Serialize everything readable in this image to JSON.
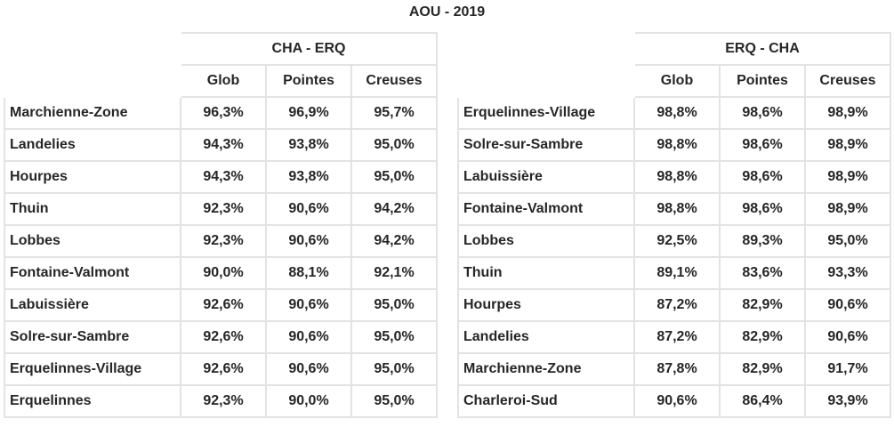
{
  "title": "AOU - 2019",
  "columns": [
    "Glob",
    "Pointes",
    "Creuses"
  ],
  "tables": [
    {
      "group": "CHA - ERQ",
      "rows": [
        {
          "name": "Marchienne-Zone",
          "glob": "96,3%",
          "pointes": "96,9%",
          "creuses": "95,7%"
        },
        {
          "name": "Landelies",
          "glob": "94,3%",
          "pointes": "93,8%",
          "creuses": "95,0%"
        },
        {
          "name": "Hourpes",
          "glob": "94,3%",
          "pointes": "93,8%",
          "creuses": "95,0%"
        },
        {
          "name": "Thuin",
          "glob": "92,3%",
          "pointes": "90,6%",
          "creuses": "94,2%"
        },
        {
          "name": "Lobbes",
          "glob": "92,3%",
          "pointes": "90,6%",
          "creuses": "94,2%"
        },
        {
          "name": "Fontaine-Valmont",
          "glob": "90,0%",
          "pointes": "88,1%",
          "creuses": "92,1%"
        },
        {
          "name": "Labuissière",
          "glob": "92,6%",
          "pointes": "90,6%",
          "creuses": "95,0%"
        },
        {
          "name": "Solre-sur-Sambre",
          "glob": "92,6%",
          "pointes": "90,6%",
          "creuses": "95,0%"
        },
        {
          "name": "Erquelinnes-Village",
          "glob": "92,6%",
          "pointes": "90,6%",
          "creuses": "95,0%"
        },
        {
          "name": "Erquelinnes",
          "glob": "92,3%",
          "pointes": "90,0%",
          "creuses": "95,0%"
        }
      ]
    },
    {
      "group": "ERQ - CHA",
      "rows": [
        {
          "name": "Erquelinnes-Village",
          "glob": "98,8%",
          "pointes": "98,6%",
          "creuses": "98,9%"
        },
        {
          "name": "Solre-sur-Sambre",
          "glob": "98,8%",
          "pointes": "98,6%",
          "creuses": "98,9%"
        },
        {
          "name": "Labuissière",
          "glob": "98,8%",
          "pointes": "98,6%",
          "creuses": "98,9%"
        },
        {
          "name": "Fontaine-Valmont",
          "glob": "98,8%",
          "pointes": "98,6%",
          "creuses": "98,9%"
        },
        {
          "name": "Lobbes",
          "glob": "92,5%",
          "pointes": "89,3%",
          "creuses": "95,0%"
        },
        {
          "name": "Thuin",
          "glob": "89,1%",
          "pointes": "83,6%",
          "creuses": "93,3%"
        },
        {
          "name": "Hourpes",
          "glob": "87,2%",
          "pointes": "82,9%",
          "creuses": "90,6%"
        },
        {
          "name": "Landelies",
          "glob": "87,2%",
          "pointes": "82,9%",
          "creuses": "90,6%"
        },
        {
          "name": "Marchienne-Zone",
          "glob": "87,8%",
          "pointes": "82,9%",
          "creuses": "91,7%"
        },
        {
          "name": "Charleroi-Sud",
          "glob": "90,6%",
          "pointes": "86,4%",
          "creuses": "93,9%"
        }
      ]
    }
  ]
}
